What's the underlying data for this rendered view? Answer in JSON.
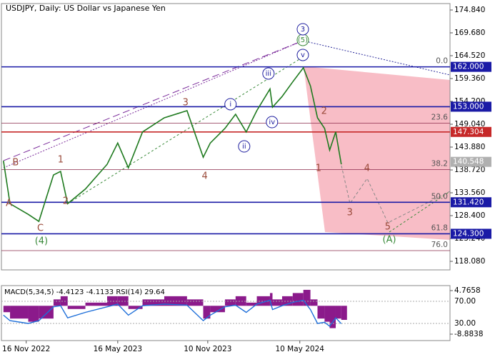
{
  "chart_data": {
    "type": "line",
    "title": "USDJPY, Daily:  US Dollar vs Japanese Yen",
    "color": "#1f7a1f",
    "xlim": [
      "2022-09-28",
      "2025-03-03"
    ],
    "xticks": [
      {
        "value": "2022-11-16",
        "label": "16 Nov 2022"
      },
      {
        "value": "2023-05-16",
        "label": "16 May 2023"
      },
      {
        "value": "2023-11-10",
        "label": "10 Nov 2023"
      },
      {
        "value": "2024-05-10",
        "label": "10 May 2024"
      }
    ],
    "ylim": [
      116.15,
      176.29
    ],
    "yticks": [
      {
        "value": 174.84,
        "label": "174.840"
      },
      {
        "value": 169.68,
        "label": "169.680"
      },
      {
        "value": 164.52,
        "label": "164.520"
      },
      {
        "value": 159.36,
        "label": "159.360"
      },
      {
        "value": 154.2,
        "label": "154.200"
      },
      {
        "value": 149.04,
        "label": "149.040"
      },
      {
        "value": 143.88,
        "label": "143.880"
      },
      {
        "value": 138.72,
        "label": "138.720"
      },
      {
        "value": 133.56,
        "label": "133.560"
      },
      {
        "value": 128.4,
        "label": "128.400"
      },
      {
        "value": 123.24,
        "label": "123.240"
      },
      {
        "value": 118.08,
        "label": "118.080"
      }
    ],
    "x": [
      "2022-10-02",
      "2022-10-15",
      "2022-11-20",
      "2022-12-11",
      "2023-01-09",
      "2023-01-23",
      "2023-02-06",
      "2023-03-13",
      "2023-04-25",
      "2023-05-16",
      "2023-06-06",
      "2023-07-04",
      "2023-08-16",
      "2023-09-30",
      "2023-11-01",
      "2023-11-15",
      "2023-12-14",
      "2024-01-04",
      "2024-01-25",
      "2024-02-15",
      "2024-03-12",
      "2024-03-17",
      "2024-04-05",
      "2024-04-26",
      "2024-05-17",
      "2024-05-31",
      "2024-06-14",
      "2024-06-28",
      "2024-07-08",
      "2024-07-20",
      "2024-07-31"
    ],
    "values": [
      140.8,
      131.1,
      128.7,
      127.1,
      137.6,
      138.4,
      131.1,
      134.4,
      140.0,
      144.8,
      139.2,
      147.3,
      150.5,
      152.1,
      141.6,
      144.8,
      148.1,
      151.3,
      147.3,
      152.1,
      157.0,
      152.9,
      155.3,
      158.6,
      161.8,
      157.7,
      150.5,
      148.1,
      143.2,
      147.3,
      140.0
    ],
    "levels": [
      {
        "value": 162.0,
        "label": "162.000",
        "color": "#1a1aa6",
        "line": true
      },
      {
        "value": 153.0,
        "label": "153.000",
        "color": "#1a1aa6",
        "line": true
      },
      {
        "value": 147.304,
        "label": "147.304",
        "color": "#c62828",
        "line": true
      },
      {
        "value": 140.548,
        "label": "140.548",
        "color": "#b0b0b0",
        "line": false
      },
      {
        "value": 131.42,
        "label": "131.420",
        "color": "#1a1aa6",
        "line": true
      },
      {
        "value": 124.3,
        "label": "124.300",
        "color": "#1a1aa6",
        "line": true
      }
    ],
    "fib_levels": [
      {
        "value": 162.0,
        "label": "0.0"
      },
      {
        "value": 149.3,
        "label": "23.6"
      },
      {
        "value": 138.8,
        "label": "38.2"
      },
      {
        "value": 131.42,
        "label": "50.0"
      },
      {
        "value": 124.3,
        "label": "61.8"
      },
      {
        "value": 120.5,
        "label": "76.0"
      }
    ],
    "annotations": [
      {
        "text": "B",
        "x": "2022-10-26",
        "y": 140.33,
        "color": "#9a4a3a",
        "circled": false
      },
      {
        "text": "A",
        "x": "2022-10-13",
        "y": 131.14,
        "color": "#9a4a3a",
        "circled": false
      },
      {
        "text": "C",
        "x": "2022-12-14",
        "y": 125.5,
        "color": "#9a4a3a",
        "circled": false
      },
      {
        "text": "(4)",
        "x": "2022-12-16",
        "y": 122.6,
        "color": "#3a8a3a",
        "circled": false
      },
      {
        "text": "1",
        "x": "2023-01-23",
        "y": 140.98,
        "color": "#9a4a3a",
        "circled": false
      },
      {
        "text": "2",
        "x": "2023-02-02",
        "y": 131.62,
        "color": "#9a4a3a",
        "circled": false
      },
      {
        "text": "3",
        "x": "2023-09-27",
        "y": 153.88,
        "color": "#9a4a3a",
        "circled": false
      },
      {
        "text": "4",
        "x": "2023-11-04",
        "y": 137.27,
        "color": "#9a4a3a",
        "circled": false
      },
      {
        "text": "i",
        "x": "2023-12-25",
        "y": 153.56,
        "color": "#2020a0",
        "circled": true
      },
      {
        "text": "ii",
        "x": "2024-01-21",
        "y": 144.04,
        "color": "#2020a0",
        "circled": true
      },
      {
        "text": "iii",
        "x": "2024-03-09",
        "y": 160.49,
        "color": "#2020a0",
        "circled": true
      },
      {
        "text": "iv",
        "x": "2024-03-16",
        "y": 149.52,
        "color": "#2020a0",
        "circled": true
      },
      {
        "text": "v",
        "x": "2024-05-16",
        "y": 164.68,
        "color": "#2020a0",
        "circled": true
      },
      {
        "text": "(5)",
        "x": "2024-05-16",
        "y": 168.07,
        "color": "#3a8a3a",
        "circled": true
      },
      {
        "text": "3",
        "x": "2024-05-16",
        "y": 170.49,
        "color": "#2020a0",
        "circled": true
      },
      {
        "text": "1",
        "x": "2024-06-16",
        "y": 139.04,
        "color": "#9a4a3a",
        "circled": false
      },
      {
        "text": "2",
        "x": "2024-06-27",
        "y": 151.94,
        "color": "#9a4a3a",
        "circled": false
      },
      {
        "text": "3",
        "x": "2024-08-17",
        "y": 129.05,
        "color": "#9a4a3a",
        "circled": false
      },
      {
        "text": "4",
        "x": "2024-09-20",
        "y": 139.04,
        "color": "#9a4a3a",
        "circled": false
      },
      {
        "text": "5",
        "x": "2024-10-31",
        "y": 125.82,
        "color": "#9a4a3a",
        "circled": false
      },
      {
        "text": "(A)",
        "x": "2024-11-03",
        "y": 122.92,
        "color": "#3a8a3a",
        "circled": false
      }
    ],
    "indicator": {
      "label": "MACD(5,34,5) -4.4123 -4.1133 RSI(14) 29.64",
      "macd": {
        "color": "#8b1a8b",
        "ylim": [
          -10.9,
          6.33
        ],
        "ticks": [
          4.7658,
          -8.8838
        ],
        "values": [
          -2,
          -4,
          -5,
          -4,
          2,
          3,
          -1,
          1,
          3,
          3,
          -1,
          2,
          3,
          2,
          -4,
          -2,
          2,
          3,
          1,
          3,
          4,
          2,
          3,
          4,
          5,
          2,
          -4,
          -5,
          -7,
          -4,
          -4.4123
        ]
      },
      "rsi": {
        "color": "#1e6fd9",
        "ylim": [
          -1,
          98.4
        ],
        "ticks": [
          {
            "value": 70,
            "label": "70.00"
          },
          {
            "value": 30,
            "label": "30.00"
          }
        ],
        "values": [
          45,
          35,
          30,
          35,
          60,
          62,
          40,
          50,
          60,
          65,
          45,
          62,
          65,
          63,
          35,
          45,
          60,
          63,
          50,
          65,
          72,
          55,
          62,
          68,
          72,
          55,
          30,
          32,
          25,
          40,
          29.64
        ]
      }
    }
  }
}
